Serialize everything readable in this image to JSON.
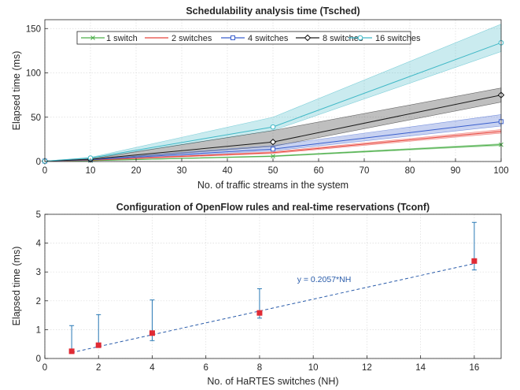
{
  "chart_data": [
    {
      "type": "line",
      "title": "Schedulability analysis time (Tsched)",
      "xlabel": "No. of traffic streams in the system",
      "ylabel": "Elapsed time (ms)",
      "xlim": [
        0,
        100
      ],
      "ylim": [
        0,
        160
      ],
      "xticks": [
        "0",
        "10",
        "20",
        "30",
        "40",
        "50",
        "60",
        "70",
        "80",
        "90",
        "100"
      ],
      "yticks": [
        "0",
        "50",
        "100",
        "150"
      ],
      "grid": true,
      "legend": "top-left, horizontal",
      "x": [
        0,
        10,
        50,
        100
      ],
      "series": [
        {
          "name": "1 switch",
          "color": "#4daf4a",
          "marker": "x",
          "values": [
            0.5,
            1,
            6,
            19
          ],
          "lower": [
            0.5,
            0.9,
            5.5,
            18
          ],
          "upper": [
            0.5,
            1.2,
            6.5,
            20
          ]
        },
        {
          "name": "2 switches",
          "color": "#e8453c",
          "marker": "none",
          "values": [
            0.5,
            1.5,
            10,
            34
          ],
          "lower": [
            0.5,
            1.3,
            9,
            32
          ],
          "upper": [
            0.5,
            1.7,
            11,
            36
          ]
        },
        {
          "name": "4 switches",
          "color": "#3a5fcd",
          "marker": "square",
          "values": [
            0.5,
            2,
            14,
            45
          ],
          "lower": [
            0.5,
            1.7,
            12,
            40
          ],
          "upper": [
            0.5,
            2.4,
            18,
            53
          ]
        },
        {
          "name": "8 switches",
          "color": "#1a1a1a",
          "marker": "diamond",
          "values": [
            0.5,
            2.5,
            22,
            75
          ],
          "lower": [
            0.5,
            2,
            17,
            67
          ],
          "upper": [
            0.5,
            3,
            35,
            83
          ]
        },
        {
          "name": "16 switches",
          "color": "#3fb8c6",
          "marker": "circle",
          "values": [
            0.5,
            4,
            39,
            134
          ],
          "lower": [
            0.5,
            3.4,
            35,
            124
          ],
          "upper": [
            0.5,
            4.6,
            50,
            155
          ]
        }
      ]
    },
    {
      "type": "scatter",
      "title": "Configuration of OpenFlow rules and real-time reservations (Tconf)",
      "xlabel": "No. of HaRTES switches (NH)",
      "ylabel": "Elapsed time (ms)",
      "xlim": [
        0,
        17
      ],
      "ylim": [
        0,
        5
      ],
      "xticks": [
        "0",
        "2",
        "4",
        "6",
        "8",
        "10",
        "12",
        "14",
        "16"
      ],
      "yticks": [
        "0",
        "1",
        "2",
        "3",
        "4",
        "5"
      ],
      "grid": true,
      "points": {
        "x": [
          1,
          2,
          4,
          8,
          16
        ],
        "y": [
          0.25,
          0.46,
          0.88,
          1.58,
          3.38
        ],
        "err_low": [
          0.2,
          0.4,
          0.62,
          1.4,
          3.07
        ],
        "err_high": [
          1.14,
          1.52,
          2.03,
          2.42,
          4.72
        ],
        "marker_color": "#e02b35",
        "errorbar_color": "#2878b5"
      },
      "fit": {
        "label": "y = 0.2057*NH",
        "slope": 0.2057,
        "x_range": [
          1,
          16
        ],
        "color": "#2a5caa",
        "style": "dashed"
      }
    }
  ]
}
